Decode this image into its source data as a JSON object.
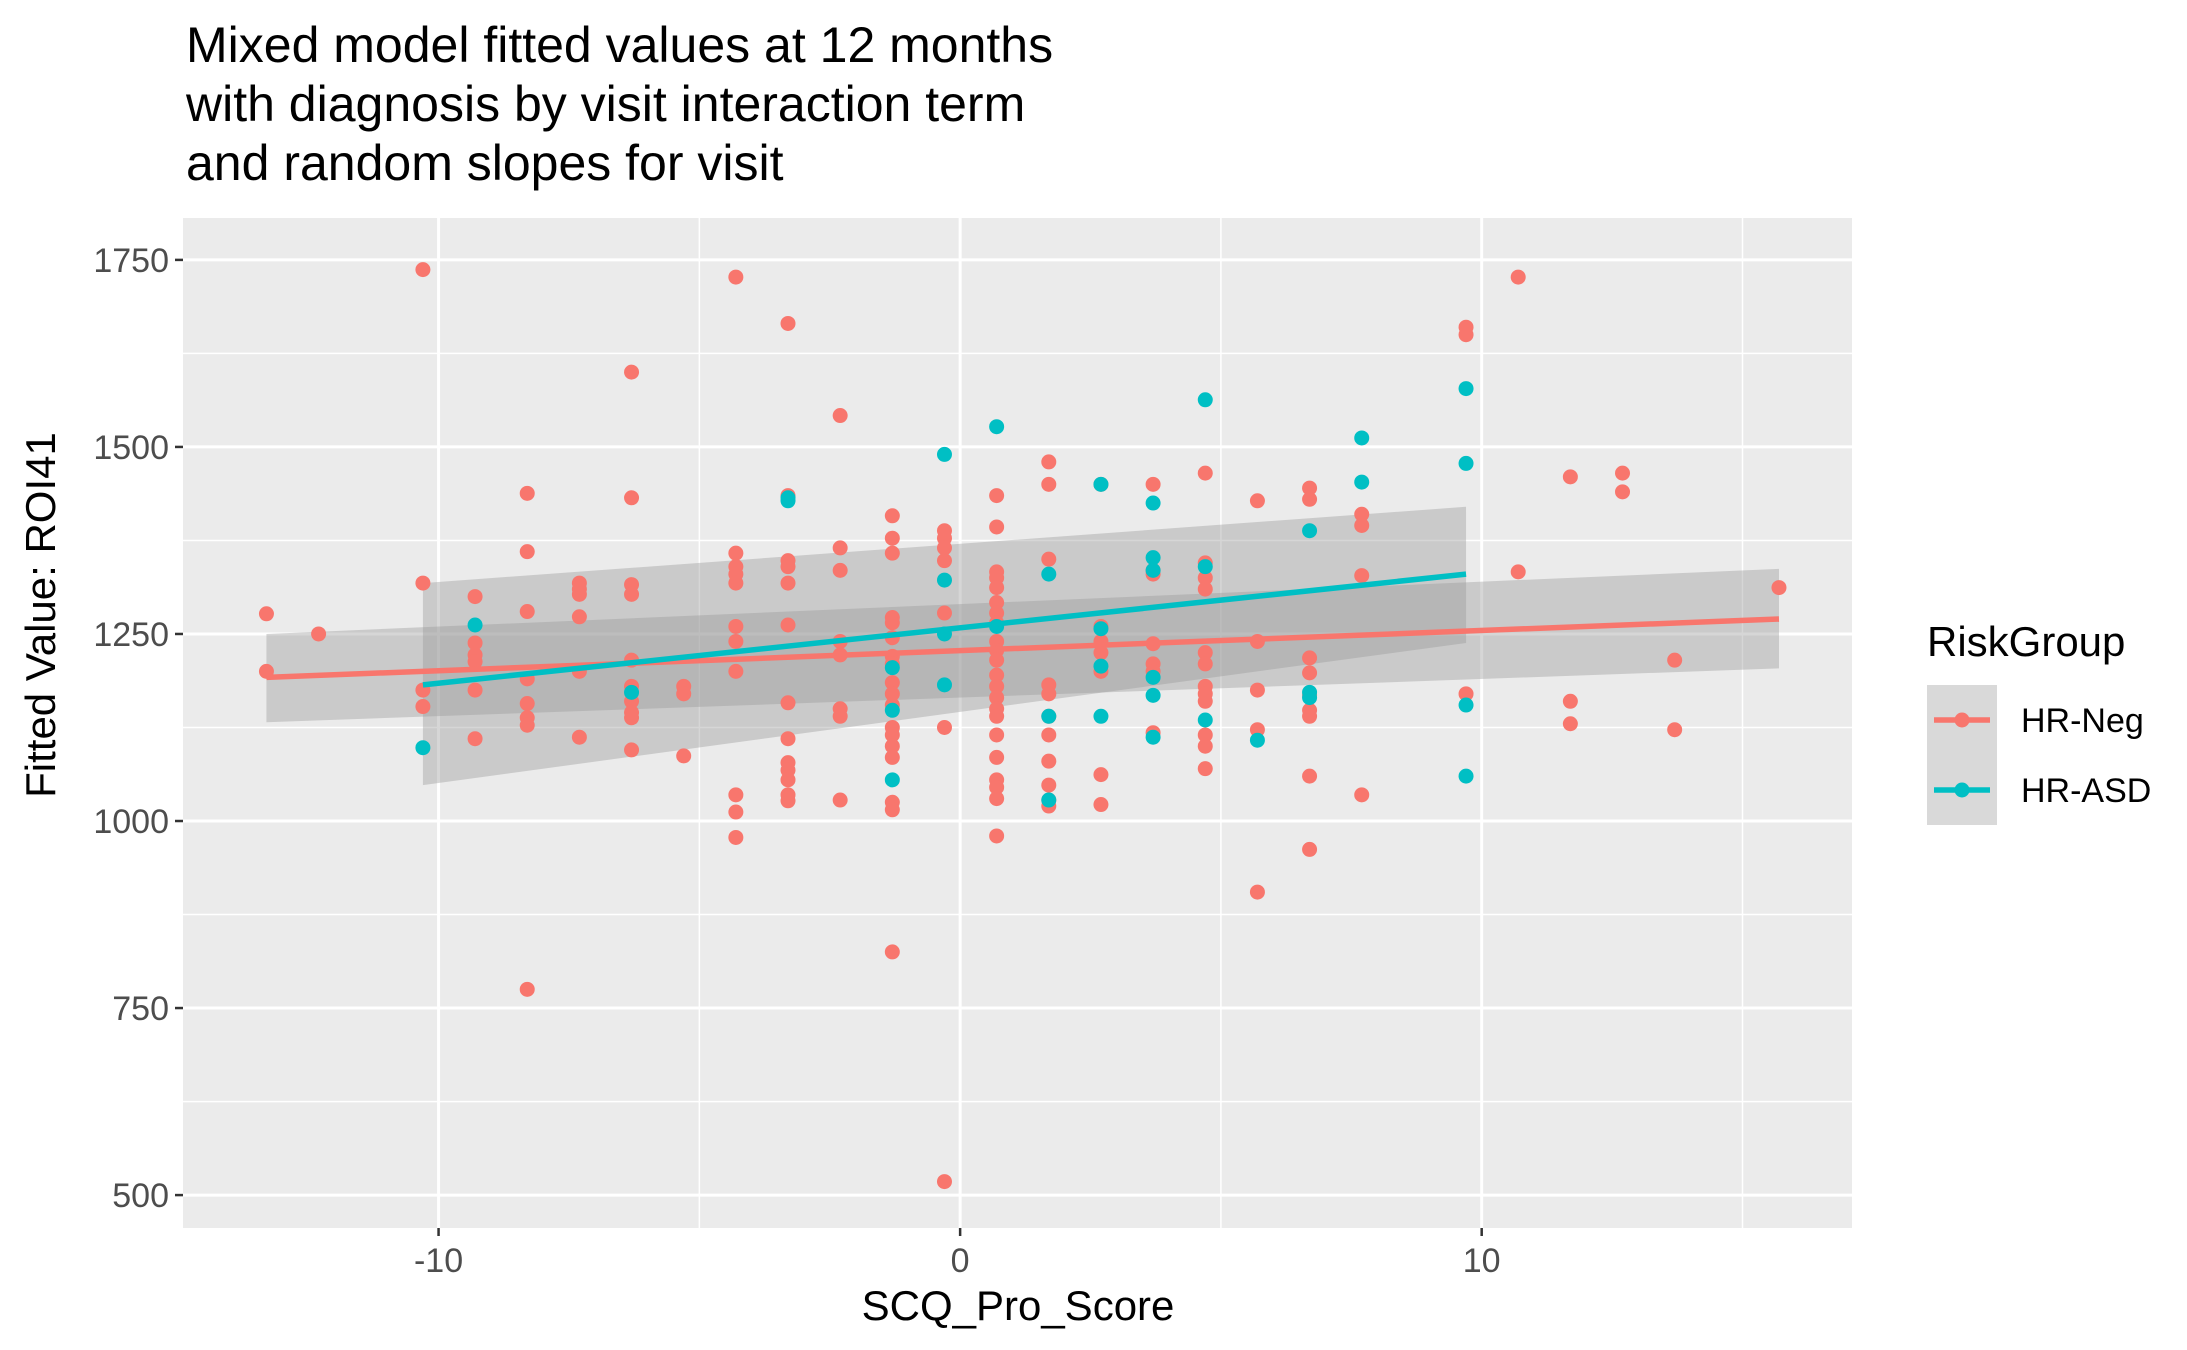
{
  "chart_data": {
    "type": "scatter",
    "title": "Mixed model fitted values at 12 months\nwith diagnosis by visit interaction term\nand random slopes for visit",
    "xlabel": "SCQ_Pro_Score",
    "ylabel": "Fitted Value: ROI41",
    "xlim": [
      -14.9,
      17.1
    ],
    "ylim": [
      456,
      1806
    ],
    "x_ticks": [
      -10,
      0,
      10
    ],
    "x_tick_labels": [
      "-10",
      "0",
      "10"
    ],
    "y_ticks": [
      500,
      750,
      1000,
      1250,
      1500,
      1750
    ],
    "y_tick_labels": [
      "500",
      "750",
      "1000",
      "1250",
      "1500",
      "1750"
    ],
    "grid": true,
    "legend": {
      "title": "RiskGroup",
      "position": "right",
      "entries": [
        "HR-Neg",
        "HR-ASD"
      ]
    },
    "colors": {
      "HR-Neg": "#F8766D",
      "HR-ASD": "#00BFC4",
      "panel": "#EBEBEB",
      "ribbon": "#999999"
    },
    "series": [
      {
        "name": "HR-Neg",
        "points": [
          [
            -13.3,
            1277
          ],
          [
            -13.3,
            1200
          ],
          [
            -12.3,
            1250
          ],
          [
            -10.3,
            1737
          ],
          [
            -10.3,
            1318
          ],
          [
            -10.3,
            1175
          ],
          [
            -10.3,
            1153
          ],
          [
            -9.3,
            1300
          ],
          [
            -9.3,
            1238
          ],
          [
            -9.3,
            1222
          ],
          [
            -9.3,
            1213
          ],
          [
            -9.3,
            1175
          ],
          [
            -9.3,
            1110
          ],
          [
            -8.3,
            1438
          ],
          [
            -8.3,
            1360
          ],
          [
            -8.3,
            1280
          ],
          [
            -8.3,
            1190
          ],
          [
            -8.3,
            1157
          ],
          [
            -8.3,
            1138
          ],
          [
            -8.3,
            1128
          ],
          [
            -8.3,
            775
          ],
          [
            -7.3,
            1318
          ],
          [
            -7.3,
            1310
          ],
          [
            -7.3,
            1303
          ],
          [
            -7.3,
            1273
          ],
          [
            -7.3,
            1200
          ],
          [
            -7.3,
            1112
          ],
          [
            -6.3,
            1600
          ],
          [
            -6.3,
            1432
          ],
          [
            -6.3,
            1316
          ],
          [
            -6.3,
            1303
          ],
          [
            -6.3,
            1215
          ],
          [
            -6.3,
            1180
          ],
          [
            -6.3,
            1160
          ],
          [
            -6.3,
            1145
          ],
          [
            -6.3,
            1138
          ],
          [
            -6.3,
            1095
          ],
          [
            -5.3,
            1180
          ],
          [
            -5.3,
            1170
          ],
          [
            -5.3,
            1087
          ],
          [
            -4.3,
            1727
          ],
          [
            -4.3,
            1358
          ],
          [
            -4.3,
            1340
          ],
          [
            -4.3,
            1330
          ],
          [
            -4.3,
            1318
          ],
          [
            -4.3,
            1260
          ],
          [
            -4.3,
            1240
          ],
          [
            -4.3,
            1200
          ],
          [
            -4.3,
            1035
          ],
          [
            -4.3,
            1012
          ],
          [
            -4.3,
            978
          ],
          [
            -3.3,
            1665
          ],
          [
            -3.3,
            1435
          ],
          [
            -3.3,
            1348
          ],
          [
            -3.3,
            1340
          ],
          [
            -3.3,
            1318
          ],
          [
            -3.3,
            1262
          ],
          [
            -3.3,
            1158
          ],
          [
            -3.3,
            1110
          ],
          [
            -3.3,
            1078
          ],
          [
            -3.3,
            1068
          ],
          [
            -3.3,
            1055
          ],
          [
            -3.3,
            1035
          ],
          [
            -3.3,
            1027
          ],
          [
            -2.3,
            1542
          ],
          [
            -2.3,
            1365
          ],
          [
            -2.3,
            1335
          ],
          [
            -2.3,
            1240
          ],
          [
            -2.3,
            1222
          ],
          [
            -2.3,
            1150
          ],
          [
            -2.3,
            1140
          ],
          [
            -2.3,
            1028
          ],
          [
            -1.3,
            1408
          ],
          [
            -1.3,
            1378
          ],
          [
            -1.3,
            1358
          ],
          [
            -1.3,
            1272
          ],
          [
            -1.3,
            1265
          ],
          [
            -1.3,
            1245
          ],
          [
            -1.3,
            1220
          ],
          [
            -1.3,
            1210
          ],
          [
            -1.3,
            1185
          ],
          [
            -1.3,
            1170
          ],
          [
            -1.3,
            1155
          ],
          [
            -1.3,
            1125
          ],
          [
            -1.3,
            1115
          ],
          [
            -1.3,
            1100
          ],
          [
            -1.3,
            1085
          ],
          [
            -1.3,
            1025
          ],
          [
            -1.3,
            1015
          ],
          [
            -1.3,
            825
          ],
          [
            -0.3,
            1388
          ],
          [
            -0.3,
            1378
          ],
          [
            -0.3,
            1365
          ],
          [
            -0.3,
            1348
          ],
          [
            -0.3,
            1278
          ],
          [
            -0.3,
            1125
          ],
          [
            -0.3,
            518
          ],
          [
            0.7,
            1435
          ],
          [
            0.7,
            1393
          ],
          [
            0.7,
            1333
          ],
          [
            0.7,
            1325
          ],
          [
            0.7,
            1312
          ],
          [
            0.7,
            1292
          ],
          [
            0.7,
            1278
          ],
          [
            0.7,
            1265
          ],
          [
            0.7,
            1240
          ],
          [
            0.7,
            1228
          ],
          [
            0.7,
            1215
          ],
          [
            0.7,
            1195
          ],
          [
            0.7,
            1180
          ],
          [
            0.7,
            1165
          ],
          [
            0.7,
            1150
          ],
          [
            0.7,
            1140
          ],
          [
            0.7,
            1115
          ],
          [
            0.7,
            1085
          ],
          [
            0.7,
            1055
          ],
          [
            0.7,
            1045
          ],
          [
            0.7,
            1030
          ],
          [
            0.7,
            980
          ],
          [
            1.7,
            1480
          ],
          [
            1.7,
            1450
          ],
          [
            1.7,
            1350
          ],
          [
            1.7,
            1182
          ],
          [
            1.7,
            1170
          ],
          [
            1.7,
            1140
          ],
          [
            1.7,
            1115
          ],
          [
            1.7,
            1080
          ],
          [
            1.7,
            1048
          ],
          [
            1.7,
            1028
          ],
          [
            1.7,
            1020
          ],
          [
            2.7,
            1450
          ],
          [
            2.7,
            1260
          ],
          [
            2.7,
            1240
          ],
          [
            2.7,
            1225
          ],
          [
            2.7,
            1200
          ],
          [
            2.7,
            1062
          ],
          [
            2.7,
            1022
          ],
          [
            3.7,
            1450
          ],
          [
            3.7,
            1335
          ],
          [
            3.7,
            1330
          ],
          [
            3.7,
            1237
          ],
          [
            3.7,
            1210
          ],
          [
            3.7,
            1200
          ],
          [
            3.7,
            1118
          ],
          [
            4.7,
            1465
          ],
          [
            4.7,
            1345
          ],
          [
            4.7,
            1325
          ],
          [
            4.7,
            1310
          ],
          [
            4.7,
            1225
          ],
          [
            4.7,
            1210
          ],
          [
            4.7,
            1180
          ],
          [
            4.7,
            1170
          ],
          [
            4.7,
            1160
          ],
          [
            4.7,
            1115
          ],
          [
            4.7,
            1100
          ],
          [
            4.7,
            1070
          ],
          [
            5.7,
            1428
          ],
          [
            5.7,
            1240
          ],
          [
            5.7,
            1175
          ],
          [
            5.7,
            1122
          ],
          [
            5.7,
            905
          ],
          [
            6.7,
            1445
          ],
          [
            6.7,
            1430
          ],
          [
            6.7,
            1218
          ],
          [
            6.7,
            1198
          ],
          [
            6.7,
            1168
          ],
          [
            6.7,
            1148
          ],
          [
            6.7,
            1140
          ],
          [
            6.7,
            1060
          ],
          [
            6.7,
            962
          ],
          [
            7.7,
            1410
          ],
          [
            7.7,
            1395
          ],
          [
            7.7,
            1328
          ],
          [
            7.7,
            1035
          ],
          [
            9.7,
            1660
          ],
          [
            9.7,
            1650
          ],
          [
            9.7,
            1170
          ],
          [
            10.7,
            1727
          ],
          [
            10.7,
            1333
          ],
          [
            11.7,
            1460
          ],
          [
            11.7,
            1160
          ],
          [
            11.7,
            1130
          ],
          [
            12.7,
            1465
          ],
          [
            12.7,
            1440
          ],
          [
            13.7,
            1215
          ],
          [
            13.7,
            1122
          ],
          [
            15.7,
            1312
          ]
        ],
        "trend": {
          "x": [
            -13.3,
            15.7
          ],
          "y": [
            1192,
            1270
          ]
        },
        "band": {
          "x": [
            -13.3,
            15.7
          ],
          "lower": [
            1132,
            1204
          ],
          "upper": [
            1250,
            1337
          ]
        }
      },
      {
        "name": "HR-ASD",
        "points": [
          [
            -10.3,
            1098
          ],
          [
            -9.3,
            1262
          ],
          [
            -6.3,
            1172
          ],
          [
            -3.3,
            1428
          ],
          [
            -3.3,
            1432
          ],
          [
            -1.3,
            1205
          ],
          [
            -1.3,
            1148
          ],
          [
            -1.3,
            1055
          ],
          [
            -0.3,
            1490
          ],
          [
            -0.3,
            1322
          ],
          [
            -0.3,
            1250
          ],
          [
            -0.3,
            1182
          ],
          [
            0.7,
            1527
          ],
          [
            0.7,
            1260
          ],
          [
            1.7,
            1330
          ],
          [
            1.7,
            1140
          ],
          [
            1.7,
            1028
          ],
          [
            2.7,
            1450
          ],
          [
            2.7,
            1257
          ],
          [
            2.7,
            1207
          ],
          [
            2.7,
            1140
          ],
          [
            3.7,
            1425
          ],
          [
            3.7,
            1352
          ],
          [
            3.7,
            1335
          ],
          [
            3.7,
            1192
          ],
          [
            3.7,
            1168
          ],
          [
            3.7,
            1112
          ],
          [
            4.7,
            1563
          ],
          [
            4.7,
            1340
          ],
          [
            4.7,
            1135
          ],
          [
            5.7,
            1108
          ],
          [
            6.7,
            1388
          ],
          [
            6.7,
            1172
          ],
          [
            6.7,
            1165
          ],
          [
            7.7,
            1512
          ],
          [
            7.7,
            1453
          ],
          [
            9.7,
            1578
          ],
          [
            9.7,
            1478
          ],
          [
            9.7,
            1155
          ],
          [
            9.7,
            1060
          ]
        ],
        "trend": {
          "x": [
            -10.3,
            9.7
          ],
          "y": [
            1182,
            1330
          ]
        },
        "band": {
          "x": [
            -10.3,
            9.7
          ],
          "lower": [
            1048,
            1238
          ],
          "upper": [
            1318,
            1420
          ]
        }
      }
    ]
  }
}
